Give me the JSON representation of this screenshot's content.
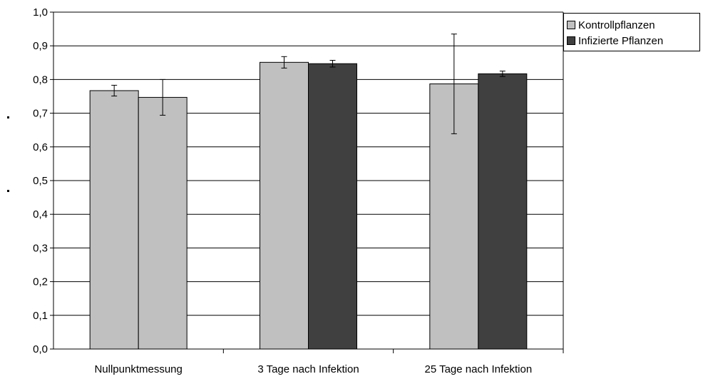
{
  "chart_data": {
    "type": "bar",
    "categories": [
      "Nullpunktmessung",
      "3 Tage nach Infektion",
      "25 Tage nach Infektion"
    ],
    "series": [
      {
        "name": "Kontrollpflanzen",
        "values": [
          0.767,
          0.851,
          0.787
        ],
        "errors": [
          0.016,
          0.017,
          0.148
        ],
        "color": "#c0c0c0"
      },
      {
        "name": "Infizierte Pflanzen",
        "values": [
          0.747,
          0.847,
          0.817
        ],
        "errors": [
          0.053,
          0.01,
          0.008
        ],
        "colors": [
          "#c0c0c0",
          "#404040",
          "#404040"
        ]
      }
    ],
    "ylim": [
      0,
      1.0
    ],
    "yticks": [
      "0,0",
      "0,1",
      "0,2",
      "0,3",
      "0,4",
      "0,5",
      "0,6",
      "0,7",
      "0,8",
      "0,9",
      "1,0"
    ],
    "grid": true,
    "legend_position": "top-right",
    "legend": [
      {
        "label": "Kontrollpflanzen",
        "color": "#c0c0c0"
      },
      {
        "label": "Infizierte Pflanzen",
        "color": "#404040"
      }
    ]
  }
}
